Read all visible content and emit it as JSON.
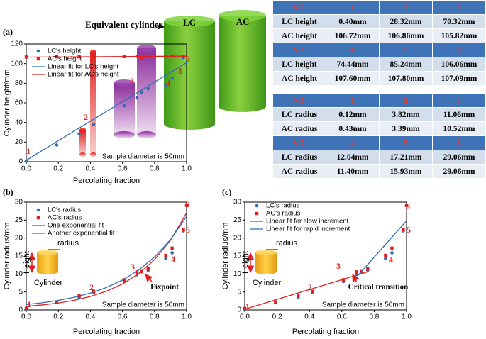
{
  "chart_data": [
    {
      "type": "scatter",
      "label": "(a)",
      "x_label": "Percolating fraction",
      "y_label": "Cylinder height/mm",
      "xlim": [
        0,
        1
      ],
      "xticks": [
        {
          "value": 0,
          "label": "0.0"
        },
        {
          "value": 0.2,
          "label": "0.2"
        },
        {
          "value": 0.4,
          "label": "0.4"
        },
        {
          "value": 0.6,
          "label": "0.6"
        },
        {
          "value": 0.8,
          "label": "0.8"
        },
        {
          "value": 1,
          "label": "1.0"
        }
      ],
      "ylim": [
        0,
        120
      ],
      "yticks": [
        0,
        20,
        40,
        60,
        80,
        100,
        120
      ],
      "legend": "upper left",
      "series": [
        {
          "name": "LC's height",
          "type": "scatter",
          "marker": "circle",
          "color": "#2f6db5",
          "x": [
            0,
            0.19,
            0.33,
            0.42,
            0.61,
            0.69,
            0.72,
            0.76,
            0.87,
            0.91,
            0.98
          ],
          "values": [
            0.4,
            17,
            28.3,
            38,
            57,
            65,
            70.3,
            74.4,
            78,
            85.2,
            106.1
          ]
        },
        {
          "name": "AC's height",
          "type": "scatter",
          "marker": "square",
          "color": "#e02020",
          "x": [
            0,
            0.19,
            0.33,
            0.42,
            0.61,
            0.69,
            0.72,
            0.76,
            0.87,
            0.91,
            0.98
          ],
          "values": [
            106.7,
            106.9,
            106.9,
            107.0,
            107.1,
            107.4,
            105.8,
            107.6,
            107.5,
            107.8,
            107.1
          ]
        },
        {
          "name": "Linear fit for LC's height",
          "type": "line",
          "color": "#2f6db5",
          "x": [
            0,
            1
          ],
          "values": [
            1.5,
            101
          ]
        },
        {
          "name": "Linear fit for AC's height",
          "type": "line",
          "color": "#e02020",
          "x": [
            0,
            1
          ],
          "values": [
            106.6,
            107.6
          ]
        }
      ],
      "note": "Sample diameter is 50mm",
      "annotations": [
        "1",
        "2",
        "3",
        "4",
        "5",
        "6",
        "Equivalent cylinder",
        "LC",
        "AC"
      ]
    },
    {
      "type": "scatter",
      "label": "(b)",
      "x_label": "Percolating fraction",
      "y_label": "Cylinder radius/mm",
      "xlim": [
        0,
        1
      ],
      "xticks": [
        {
          "value": 0,
          "label": "0.0"
        },
        {
          "value": 0.2,
          "label": "0.2"
        },
        {
          "value": 0.4,
          "label": "0.4"
        },
        {
          "value": 0.6,
          "label": "0.6"
        },
        {
          "value": 0.8,
          "label": "0.8"
        },
        {
          "value": 1,
          "label": "1.0"
        }
      ],
      "ylim": [
        0,
        30
      ],
      "yticks": [
        0,
        5,
        10,
        15,
        20,
        25,
        30
      ],
      "legend": "upper left",
      "series": [
        {
          "name": "LC's radius",
          "type": "scatter",
          "marker": "circle",
          "color": "#2f6db5",
          "x": [
            0,
            0.19,
            0.33,
            0.42,
            0.61,
            0.69,
            0.72,
            0.76,
            0.87,
            0.91,
            0.98,
            1.0
          ],
          "values": [
            0.12,
            2.0,
            3.5,
            4.8,
            7.9,
            9.8,
            10.6,
            11.06,
            14.3,
            15.9,
            22.0,
            29.06
          ]
        },
        {
          "name": "AC's radius",
          "type": "scatter",
          "marker": "square",
          "color": "#e02020",
          "x": [
            0,
            0.19,
            0.33,
            0.42,
            0.61,
            0.69,
            0.72,
            0.76,
            0.87,
            0.91,
            0.98,
            1.0
          ],
          "values": [
            0.43,
            2.2,
            3.9,
            5.2,
            8.4,
            10.6,
            10.7,
            11.4,
            15.2,
            17.2,
            22.3,
            29.06
          ]
        },
        {
          "name": "One exponential fit",
          "type": "line",
          "color": "#e02020",
          "x": [
            0,
            0.1,
            0.2,
            0.3,
            0.4,
            0.5,
            0.6,
            0.7,
            0.8,
            0.9,
            1.0
          ],
          "values": [
            1.0,
            1.39,
            1.93,
            2.69,
            3.74,
            5.2,
            7.22,
            10.05,
            13.97,
            19.42,
            27.0
          ]
        },
        {
          "name": "Another exponential fit",
          "type": "line",
          "color": "#2f6db5",
          "x": [
            0,
            0.1,
            0.2,
            0.3,
            0.4,
            0.5,
            0.6,
            0.7,
            0.8,
            0.9,
            1.0
          ],
          "values": [
            1.5,
            1.99,
            2.65,
            3.53,
            4.69,
            6.24,
            8.31,
            11.06,
            14.71,
            19.58,
            26.05
          ]
        }
      ],
      "note": "Sample diameter is 50mm",
      "annotations": [
        "1",
        "2",
        "3",
        "4",
        "5",
        "6",
        "radius",
        "Height",
        "Cylinder",
        "Fixpoint"
      ]
    },
    {
      "type": "scatter",
      "label": "(c)",
      "x_label": "Percolating fraction",
      "y_label": "Cylinder radius/mm",
      "xlim": [
        0,
        1
      ],
      "xticks": [
        {
          "value": 0,
          "label": "0.0"
        },
        {
          "value": 0.2,
          "label": "0.2"
        },
        {
          "value": 0.4,
          "label": "0.4"
        },
        {
          "value": 0.6,
          "label": "0.6"
        },
        {
          "value": 0.8,
          "label": "0.8"
        },
        {
          "value": 1,
          "label": "1.0"
        }
      ],
      "ylim": [
        0,
        30
      ],
      "yticks": [
        0,
        5,
        10,
        15,
        20,
        25,
        30
      ],
      "legend": "upper left",
      "series": [
        {
          "name": "LC's radius",
          "type": "scatter",
          "marker": "circle",
          "color": "#2f6db5",
          "x": [
            0,
            0.19,
            0.33,
            0.42,
            0.61,
            0.69,
            0.72,
            0.76,
            0.87,
            0.91,
            0.98,
            1.0
          ],
          "values": [
            0.12,
            2.0,
            3.5,
            4.8,
            7.9,
            9.8,
            10.6,
            11.06,
            14.3,
            15.9,
            22.0,
            29.06
          ]
        },
        {
          "name": "AC's radius",
          "type": "scatter",
          "marker": "square",
          "color": "#e02020",
          "x": [
            0,
            0.19,
            0.33,
            0.42,
            0.61,
            0.69,
            0.72,
            0.76,
            0.87,
            0.91,
            0.98,
            1.0
          ],
          "values": [
            0.43,
            2.2,
            3.9,
            5.2,
            8.4,
            10.6,
            10.7,
            11.4,
            15.2,
            17.2,
            22.3,
            29.06
          ]
        },
        {
          "name": "Linear fit for slow increment",
          "type": "line",
          "color": "#e02020",
          "x": [
            0,
            0.76
          ],
          "values": [
            0.2,
            10.6
          ]
        },
        {
          "name": "Linear fit for rapid increment",
          "type": "line",
          "color": "#2f6db5",
          "x": [
            0.7,
            1.0
          ],
          "values": [
            9.6,
            24.8
          ]
        }
      ],
      "note": "Sample diameter is 50mm",
      "annotations": [
        "1",
        "2",
        "3",
        "4",
        "5",
        "6",
        "radius",
        "Height",
        "Cylinder",
        "Critical transition"
      ]
    }
  ],
  "tables": [
    {
      "rows": [
        [
          "NO.",
          "1",
          "2",
          "3"
        ],
        [
          "LC height",
          "0.40mm",
          "28.32mm",
          "70.32mm"
        ],
        [
          "AC height",
          "106.72mm",
          "106.86mm",
          "105.82mm"
        ],
        [
          "NO.",
          "4",
          "5",
          "6"
        ],
        [
          "LC height",
          "74.44mm",
          "85.24mm",
          "106.06mm"
        ],
        [
          "AC height",
          "107.60mm",
          "107.80mm",
          "107.09mm"
        ]
      ]
    },
    {
      "rows": [
        [
          "NO.",
          "1",
          "2",
          "3"
        ],
        [
          "LC radius",
          "0.12mm",
          "3.82mm",
          "11.06mm"
        ],
        [
          "AC radius",
          "0.43mm",
          "3.39mm",
          "10.52mm"
        ],
        [
          "NO.",
          "4",
          "5",
          "6"
        ],
        [
          "LC radius",
          "12.04mm",
          "17.21mm",
          "29.06mm"
        ],
        [
          "AC radius",
          "11.40mm",
          "15.93mm",
          "29.06mm"
        ]
      ]
    }
  ]
}
